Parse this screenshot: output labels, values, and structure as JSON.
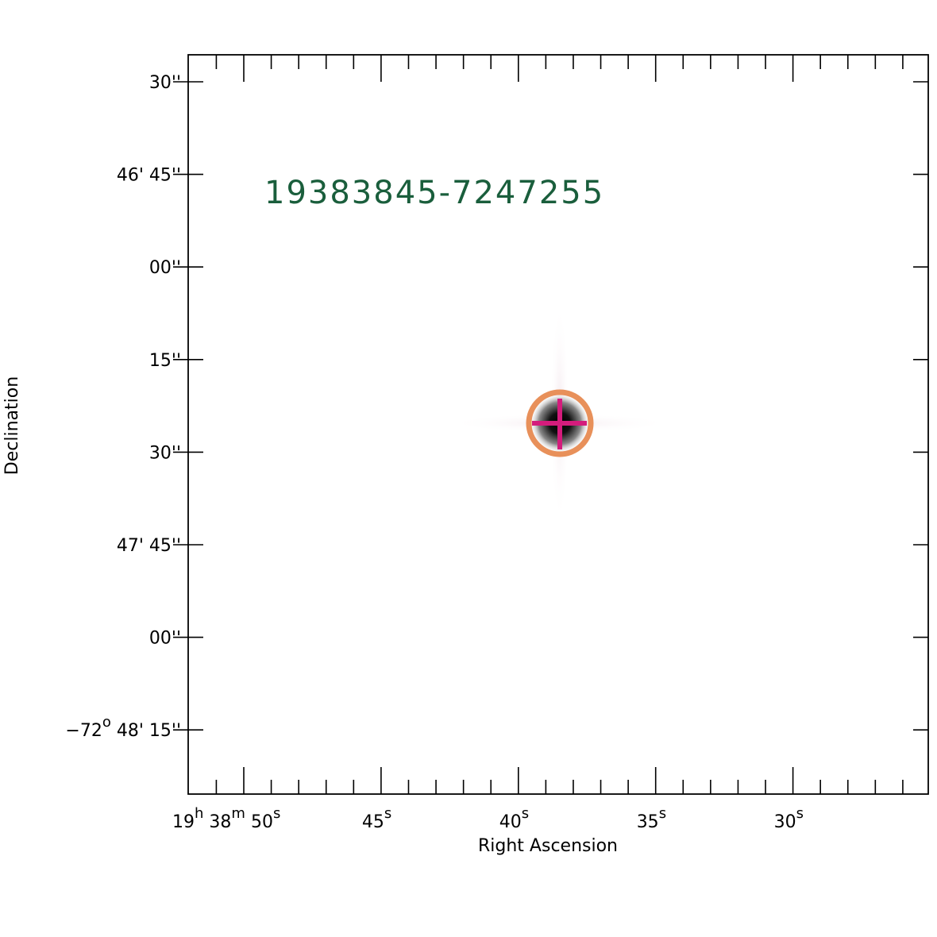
{
  "title": "19383845-7247255",
  "x_axis": {
    "label": "Right Ascension",
    "ticks": [
      [
        {
          "text": "19",
          "sup": "h"
        },
        {
          "text": " 38",
          "sup": "m"
        },
        {
          "text": " 50",
          "sup": "s"
        }
      ],
      [
        {
          "text": "45",
          "sup": "s"
        }
      ],
      [
        {
          "text": "40",
          "sup": "s"
        }
      ],
      [
        {
          "text": "35",
          "sup": "s"
        }
      ],
      [
        {
          "text": "30",
          "sup": "s"
        }
      ]
    ]
  },
  "y_axis": {
    "label": "Declination",
    "ticks": [
      [
        {
          "text": "30''"
        }
      ],
      [
        {
          "text": "46' 45''"
        }
      ],
      [
        {
          "text": "00''"
        }
      ],
      [
        {
          "text": "15''"
        }
      ],
      [
        {
          "text": "30''"
        }
      ],
      [
        {
          "text": "47' 45''"
        }
      ],
      [
        {
          "text": "00''"
        }
      ],
      [
        {
          "text": "−72",
          "sup": "o"
        },
        {
          "text": " 48' 15''"
        }
      ]
    ]
  }
}
